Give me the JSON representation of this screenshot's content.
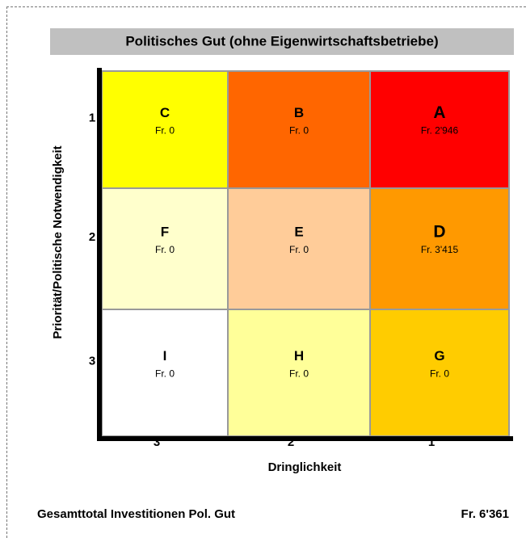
{
  "title": "Politisches Gut (ohne Eigenwirtschaftsbetriebe)",
  "y_axis_label": "Priorität/Politische Notwendigkeit",
  "x_axis_label": "Dringlichkeit",
  "row_labels": [
    "1",
    "2",
    "3"
  ],
  "column_labels": [
    "3",
    "2",
    "1"
  ],
  "cells": [
    [
      {
        "letter": "C",
        "amount": "Fr. 0",
        "color": "#ffff00"
      },
      {
        "letter": "B",
        "amount": "Fr. 0",
        "color": "#ff6600"
      },
      {
        "letter": "A",
        "amount": "Fr. 2'946",
        "color": "#ff0000"
      }
    ],
    [
      {
        "letter": "F",
        "amount": "Fr. 0",
        "color": "#ffffcc"
      },
      {
        "letter": "E",
        "amount": "Fr. 0",
        "color": "#ffcc99"
      },
      {
        "letter": "D",
        "amount": "Fr. 3'415",
        "color": "#ff9900"
      }
    ],
    [
      {
        "letter": "I",
        "amount": "Fr. 0",
        "color": "#ffffff"
      },
      {
        "letter": "H",
        "amount": "Fr. 0",
        "color": "#ffff99"
      },
      {
        "letter": "G",
        "amount": "Fr. 0",
        "color": "#ffcc00"
      }
    ]
  ],
  "footer": {
    "label": "Gesamttotal Investitionen Pol. Gut",
    "total": "Fr. 6'361"
  }
}
